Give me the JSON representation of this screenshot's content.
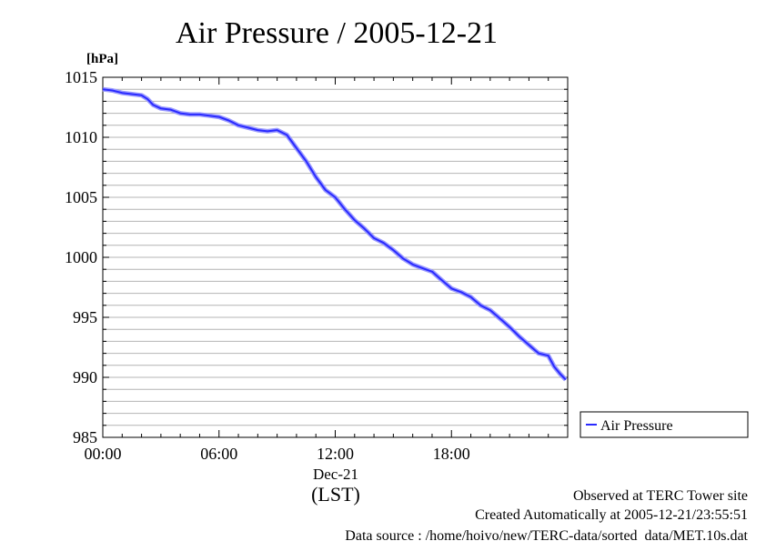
{
  "chart_data": {
    "type": "line",
    "title": "Air Pressure / 2005-12-21",
    "y_unit_label": "[hPa]",
    "ylim": [
      985,
      1015
    ],
    "y_ticks": [
      {
        "value": 1015,
        "label": "1015"
      },
      {
        "value": 1010,
        "label": "1010"
      },
      {
        "value": 1005,
        "label": "1005"
      },
      {
        "value": 1000,
        "label": "1000"
      },
      {
        "value": 995,
        "label": "995"
      },
      {
        "value": 990,
        "label": "990"
      },
      {
        "value": 985,
        "label": "985"
      }
    ],
    "y_minor_step": 1,
    "xlim": [
      0,
      24
    ],
    "x_ticks": [
      {
        "value": 0,
        "label": "00:00"
      },
      {
        "value": 6,
        "label": "06:00"
      },
      {
        "value": 12,
        "label": "12:00"
      },
      {
        "value": 18,
        "label": "18:00"
      }
    ],
    "x_date_label": "Dec-21",
    "x_axis_label": "(LST)",
    "grid": "horizontal",
    "legend_position": "right",
    "color": "#2a2aff",
    "series": [
      {
        "name": "Air Pressure",
        "x": [
          0.0,
          0.5,
          1.0,
          1.5,
          2.0,
          2.3,
          2.6,
          3.0,
          3.5,
          4.0,
          4.5,
          5.0,
          5.5,
          6.0,
          6.5,
          7.0,
          7.5,
          8.0,
          8.5,
          9.0,
          9.5,
          10.0,
          10.5,
          11.0,
          11.5,
          12.0,
          12.5,
          13.0,
          13.5,
          14.0,
          14.5,
          15.0,
          15.5,
          16.0,
          16.5,
          17.0,
          17.5,
          18.0,
          18.5,
          19.0,
          19.5,
          20.0,
          20.5,
          21.0,
          21.5,
          22.0,
          22.5,
          23.0,
          23.3,
          23.6,
          23.9
        ],
        "values": [
          1014.0,
          1013.9,
          1013.7,
          1013.6,
          1013.5,
          1013.2,
          1012.7,
          1012.4,
          1012.3,
          1012.0,
          1011.9,
          1011.9,
          1011.8,
          1011.7,
          1011.4,
          1011.0,
          1010.8,
          1010.6,
          1010.5,
          1010.6,
          1010.2,
          1009.1,
          1008.0,
          1006.7,
          1005.6,
          1005.0,
          1004.0,
          1003.1,
          1002.4,
          1001.6,
          1001.2,
          1000.6,
          999.9,
          999.4,
          999.1,
          998.8,
          998.1,
          997.4,
          997.1,
          996.7,
          996.0,
          995.6,
          994.9,
          994.2,
          993.4,
          992.7,
          992.0,
          991.8,
          990.9,
          990.3,
          989.8
        ]
      }
    ]
  },
  "footer": {
    "line1": "Observed at TERC Tower site",
    "line2": "Created Automatically at 2005-12-21/23:55:51",
    "line3": "Data source : /home/hoivo/new/TERC-data/sorted_data/MET.10s.dat"
  }
}
